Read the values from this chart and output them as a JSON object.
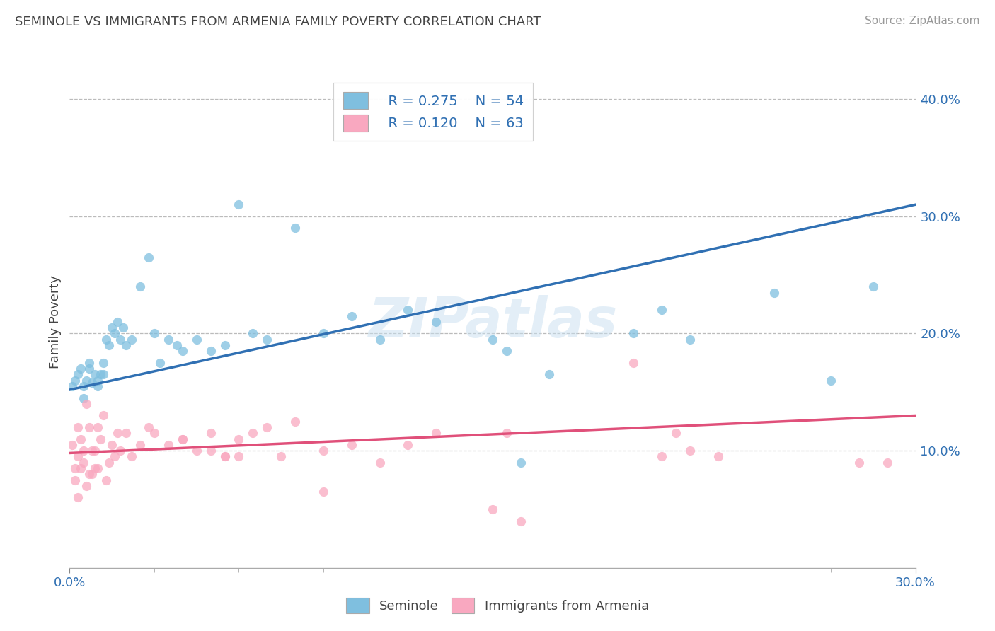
{
  "title": "SEMINOLE VS IMMIGRANTS FROM ARMENIA FAMILY POVERTY CORRELATION CHART",
  "source": "Source: ZipAtlas.com",
  "ylabel": "Family Poverty",
  "xlim": [
    0.0,
    0.3
  ],
  "ylim": [
    0.0,
    0.42
  ],
  "ytick_values": [
    0.1,
    0.2,
    0.3,
    0.4
  ],
  "legend_r1": "R = 0.275",
  "legend_n1": "N = 54",
  "legend_r2": "R = 0.120",
  "legend_n2": "N = 63",
  "color_seminole": "#7fbfdf",
  "color_armenia": "#f9a8c0",
  "color_line_seminole": "#3070b3",
  "color_line_armenia": "#e0507a",
  "watermark": "ZIPatlas",
  "reg_seminole": [
    0.152,
    0.31
  ],
  "reg_armenia": [
    0.098,
    0.13
  ],
  "seminole_x": [
    0.001,
    0.002,
    0.003,
    0.004,
    0.005,
    0.005,
    0.006,
    0.007,
    0.007,
    0.008,
    0.009,
    0.01,
    0.01,
    0.011,
    0.012,
    0.012,
    0.013,
    0.014,
    0.015,
    0.016,
    0.017,
    0.018,
    0.019,
    0.02,
    0.022,
    0.025,
    0.028,
    0.03,
    0.032,
    0.035,
    0.038,
    0.04,
    0.045,
    0.05,
    0.055,
    0.06,
    0.065,
    0.07,
    0.08,
    0.09,
    0.1,
    0.11,
    0.12,
    0.13,
    0.15,
    0.155,
    0.16,
    0.17,
    0.2,
    0.21,
    0.22,
    0.25,
    0.27,
    0.285
  ],
  "seminole_y": [
    0.155,
    0.16,
    0.165,
    0.17,
    0.155,
    0.145,
    0.16,
    0.17,
    0.175,
    0.158,
    0.165,
    0.16,
    0.155,
    0.165,
    0.175,
    0.165,
    0.195,
    0.19,
    0.205,
    0.2,
    0.21,
    0.195,
    0.205,
    0.19,
    0.195,
    0.24,
    0.265,
    0.2,
    0.175,
    0.195,
    0.19,
    0.185,
    0.195,
    0.185,
    0.19,
    0.31,
    0.2,
    0.195,
    0.29,
    0.2,
    0.215,
    0.195,
    0.22,
    0.21,
    0.195,
    0.185,
    0.09,
    0.165,
    0.2,
    0.22,
    0.195,
    0.235,
    0.16,
    0.24
  ],
  "armenia_x": [
    0.001,
    0.002,
    0.002,
    0.003,
    0.003,
    0.003,
    0.004,
    0.004,
    0.005,
    0.005,
    0.006,
    0.006,
    0.007,
    0.007,
    0.008,
    0.008,
    0.009,
    0.009,
    0.01,
    0.01,
    0.011,
    0.012,
    0.013,
    0.014,
    0.015,
    0.016,
    0.017,
    0.018,
    0.02,
    0.022,
    0.025,
    0.028,
    0.03,
    0.035,
    0.04,
    0.045,
    0.05,
    0.055,
    0.06,
    0.065,
    0.07,
    0.075,
    0.08,
    0.09,
    0.1,
    0.11,
    0.12,
    0.13,
    0.15,
    0.155,
    0.16,
    0.2,
    0.21,
    0.215,
    0.22,
    0.23,
    0.28,
    0.09,
    0.04,
    0.05,
    0.055,
    0.06,
    0.29
  ],
  "armenia_y": [
    0.105,
    0.085,
    0.075,
    0.12,
    0.095,
    0.06,
    0.11,
    0.085,
    0.09,
    0.1,
    0.14,
    0.07,
    0.08,
    0.12,
    0.1,
    0.08,
    0.1,
    0.085,
    0.12,
    0.085,
    0.11,
    0.13,
    0.075,
    0.09,
    0.105,
    0.095,
    0.115,
    0.1,
    0.115,
    0.095,
    0.105,
    0.12,
    0.115,
    0.105,
    0.11,
    0.1,
    0.115,
    0.095,
    0.11,
    0.115,
    0.12,
    0.095,
    0.125,
    0.1,
    0.105,
    0.09,
    0.105,
    0.115,
    0.05,
    0.115,
    0.04,
    0.175,
    0.095,
    0.115,
    0.1,
    0.095,
    0.09,
    0.065,
    0.11,
    0.1,
    0.095,
    0.095,
    0.09
  ]
}
